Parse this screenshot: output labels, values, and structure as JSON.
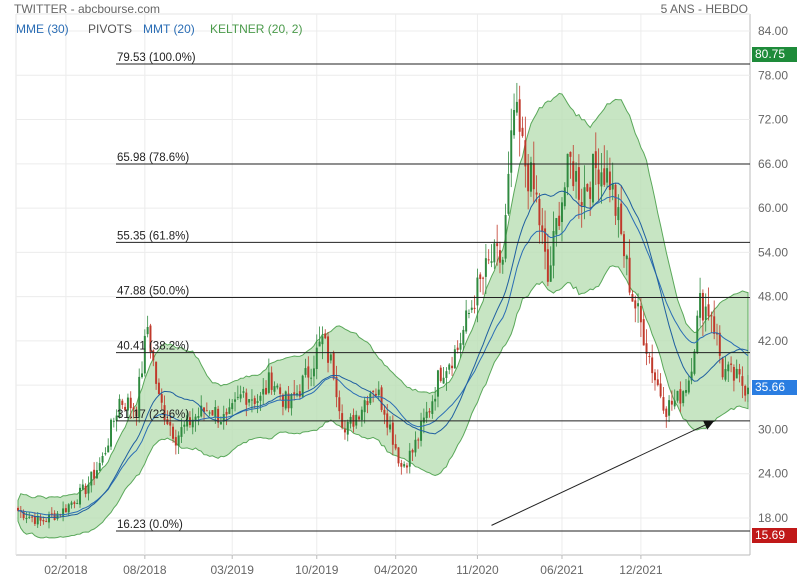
{
  "header": {
    "title": "TWITTER - abcbourse.com",
    "period": "5 ANS - HEBDO"
  },
  "indicators": [
    {
      "label": "MME (30)",
      "color": "#2a6db5"
    },
    {
      "label": "PIVOTS",
      "color": "#555555"
    },
    {
      "label": "MMT (20)",
      "color": "#2a6db5"
    },
    {
      "label": "KELTNER (20, 2)",
      "color": "#4a9a4a"
    }
  ],
  "colors": {
    "up": "#2f8a3f",
    "down": "#c0392b",
    "band_fill": "#b9dfb4",
    "band_stroke": "#5aa85a",
    "ema": "#2a6db5",
    "sma": "#1f5fa0"
  },
  "chart_data": {
    "type": "candlestick",
    "title": "TWITTER - abcbourse.com",
    "ylim": [
      14,
      85
    ],
    "y_ticks": [
      "84.00",
      "78.00",
      "72.00",
      "66.00",
      "60.00",
      "54.00",
      "48.00",
      "42.00",
      "36.00",
      "30.00",
      "24.00",
      "18.00"
    ],
    "y_tick_values": [
      84,
      78,
      72,
      66,
      60,
      54,
      48,
      42,
      36,
      30,
      24,
      18
    ],
    "x_ticks": [
      "02/2018",
      "08/2018",
      "03/2019",
      "10/2019",
      "04/2020",
      "11/2020",
      "06/2021",
      "12/2021"
    ],
    "x_tick_weeks": [
      17,
      45,
      76,
      106,
      134,
      163,
      193,
      221
    ],
    "n_weeks": 260,
    "close_anchors": [
      [
        0,
        19
      ],
      [
        8,
        17.5
      ],
      [
        16,
        19
      ],
      [
        24,
        22
      ],
      [
        30,
        26
      ],
      [
        36,
        34
      ],
      [
        42,
        33
      ],
      [
        46,
        44
      ],
      [
        50,
        34
      ],
      [
        56,
        29
      ],
      [
        62,
        31.5
      ],
      [
        68,
        33
      ],
      [
        74,
        31
      ],
      [
        80,
        35
      ],
      [
        86,
        34
      ],
      [
        90,
        37
      ],
      [
        96,
        33
      ],
      [
        102,
        37
      ],
      [
        108,
        42
      ],
      [
        112,
        38
      ],
      [
        116,
        29.5
      ],
      [
        120,
        32
      ],
      [
        126,
        36
      ],
      [
        130,
        33
      ],
      [
        136,
        25
      ],
      [
        140,
        27
      ],
      [
        146,
        33
      ],
      [
        150,
        38
      ],
      [
        156,
        41
      ],
      [
        162,
        48
      ],
      [
        168,
        53
      ],
      [
        172,
        53
      ],
      [
        176,
        73
      ],
      [
        180,
        66
      ],
      [
        184,
        61
      ],
      [
        188,
        50
      ],
      [
        192,
        60
      ],
      [
        196,
        66
      ],
      [
        200,
        62
      ],
      [
        206,
        66
      ],
      [
        210,
        64
      ],
      [
        214,
        56
      ],
      [
        218,
        48
      ],
      [
        222,
        43
      ],
      [
        226,
        37
      ],
      [
        230,
        33
      ],
      [
        234,
        34
      ],
      [
        238,
        37
      ],
      [
        242,
        47
      ],
      [
        246,
        46
      ],
      [
        250,
        38
      ],
      [
        254,
        37
      ],
      [
        259,
        35.66
      ]
    ],
    "pivots": [
      {
        "label": "79.53  (100.0%)",
        "value": 79.53
      },
      {
        "label": "65.98  (78.6%)",
        "value": 65.98
      },
      {
        "label": "55.35  (61.8%)",
        "value": 55.35
      },
      {
        "label": "47.88  (50.0%)",
        "value": 47.88
      },
      {
        "label": "40.41  (38.2%)",
        "value": 40.41
      },
      {
        "label": "31.17  (23.6%)",
        "value": 31.17
      },
      {
        "label": "16.23  (0.0%)",
        "value": 16.23
      }
    ],
    "price_tags": [
      {
        "label": "80.75",
        "value": 80.75,
        "color": "#1e8b3a"
      },
      {
        "label": "35.66",
        "value": 35.66,
        "color": "#2a7de1"
      },
      {
        "label": "15.69",
        "value": 15.69,
        "color": "#c01818"
      }
    ],
    "trendline": {
      "from": [
        168,
        17
      ],
      "to": [
        247,
        31.17
      ]
    }
  }
}
